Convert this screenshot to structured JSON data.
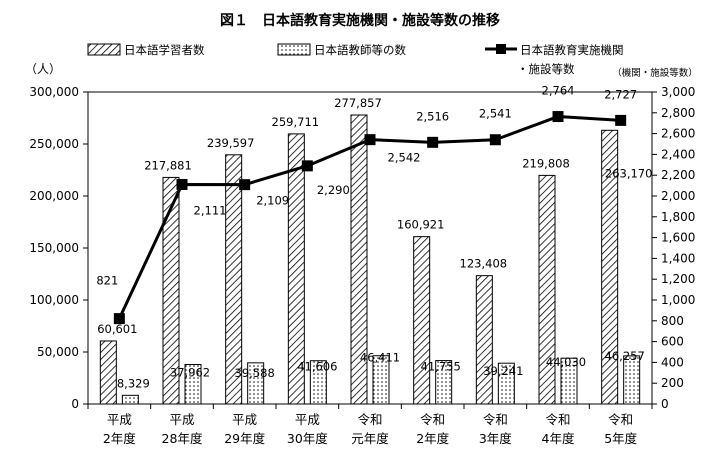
{
  "chart_data": {
    "type": "bar",
    "title": "図１　日本語教育実施機関・施設等数の推移",
    "categories": [
      [
        "平成",
        "2年度"
      ],
      [
        "平成",
        "28年度"
      ],
      [
        "平成",
        "29年度"
      ],
      [
        "平成",
        "30年度"
      ],
      [
        "令和",
        "元年度"
      ],
      [
        "令和",
        "2年度"
      ],
      [
        "令和",
        "3年度"
      ],
      [
        "令和",
        "4年度"
      ],
      [
        "令和",
        "5年度"
      ]
    ],
    "left_axis": {
      "unit": "（人）",
      "min": 0,
      "max": 300000,
      "step": 50000,
      "ticks": [
        "0",
        "50,000",
        "100,000",
        "150,000",
        "200,000",
        "250,000",
        "300,000"
      ]
    },
    "right_axis": {
      "unit": "（機関・施設等数）",
      "min": 0,
      "max": 3000,
      "step": 200,
      "ticks": [
        "0",
        "200",
        "400",
        "600",
        "800",
        "1,000",
        "1,200",
        "1,400",
        "1,600",
        "1,800",
        "2,000",
        "2,200",
        "2,400",
        "2,600",
        "2,800",
        "3,000"
      ]
    },
    "series": [
      {
        "name": "日本語学習者数",
        "kind": "bar",
        "axis": "left",
        "pattern": "diagonal",
        "values": [
          60601,
          217881,
          239597,
          259711,
          277857,
          160921,
          123408,
          219808,
          263170
        ],
        "labels": [
          "60,601",
          "217,881",
          "239,597",
          "259,711",
          "277,857",
          "160,921",
          "123,408",
          "219,808",
          "263,170"
        ]
      },
      {
        "name": "日本語教師等の数",
        "kind": "bar",
        "axis": "left",
        "pattern": "dotted",
        "values": [
          8329,
          37962,
          39588,
          41606,
          46411,
          41755,
          39241,
          44030,
          46257
        ],
        "labels": [
          "8,329",
          "37,962",
          "39,588",
          "41,606",
          "46,411",
          "41,755",
          "39,241",
          "44,030",
          "46,257"
        ]
      },
      {
        "name": "日本語教育実施機関・施設等数",
        "name_lines": [
          "日本語教育実施機関",
          "・施設等数"
        ],
        "kind": "line",
        "axis": "right",
        "values": [
          821,
          2111,
          2109,
          2290,
          2542,
          2516,
          2541,
          2764,
          2727
        ],
        "labels": [
          "821",
          "2,111",
          "2,109",
          "2,290",
          "2,542",
          "2,516",
          "2,541",
          "2,764",
          "2,727"
        ]
      }
    ],
    "legend": "top",
    "grid": false
  }
}
